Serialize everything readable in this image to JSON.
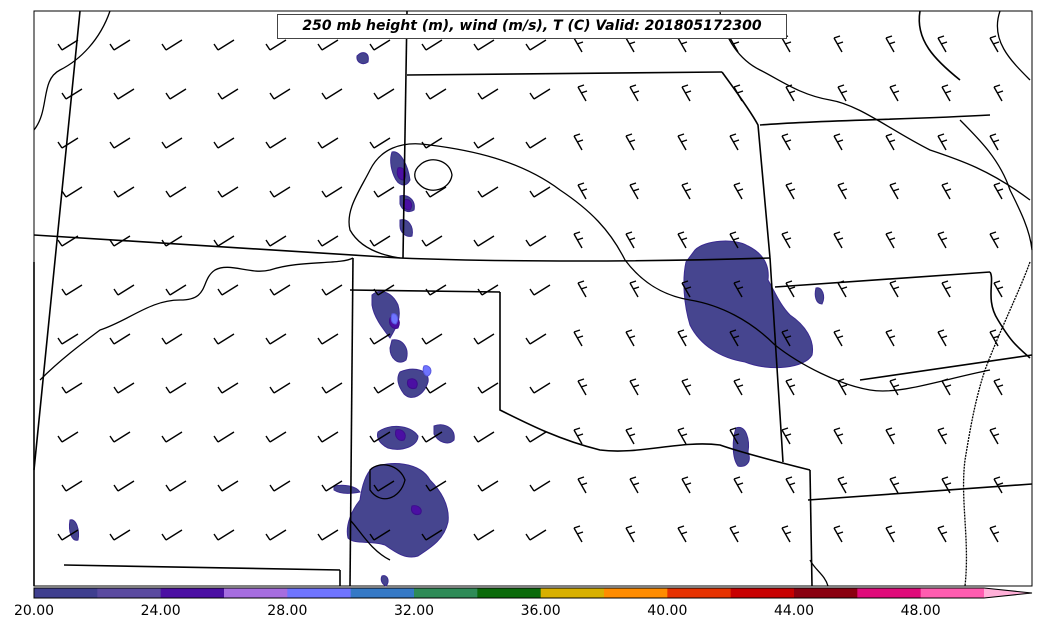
{
  "title": "250 mb height (m), wind (m/s), T (C) Valid: 201805172300",
  "colorbar": {
    "colors": [
      "#3f3f8f",
      "#5a4aa0",
      "#4b0fa3",
      "#a66de0",
      "#6f74ff",
      "#3579c6",
      "#2e8b57",
      "#0a6a0a",
      "#d8b000",
      "#ff8c00",
      "#e63200",
      "#c80000",
      "#8a0010",
      "#e00a7a",
      "#ff5cb0",
      "#ffb0d8"
    ],
    "ticks": [
      "20.00",
      "24.00",
      "28.00",
      "32.00",
      "36.00",
      "40.00",
      "44.00",
      "48.00"
    ]
  }
}
